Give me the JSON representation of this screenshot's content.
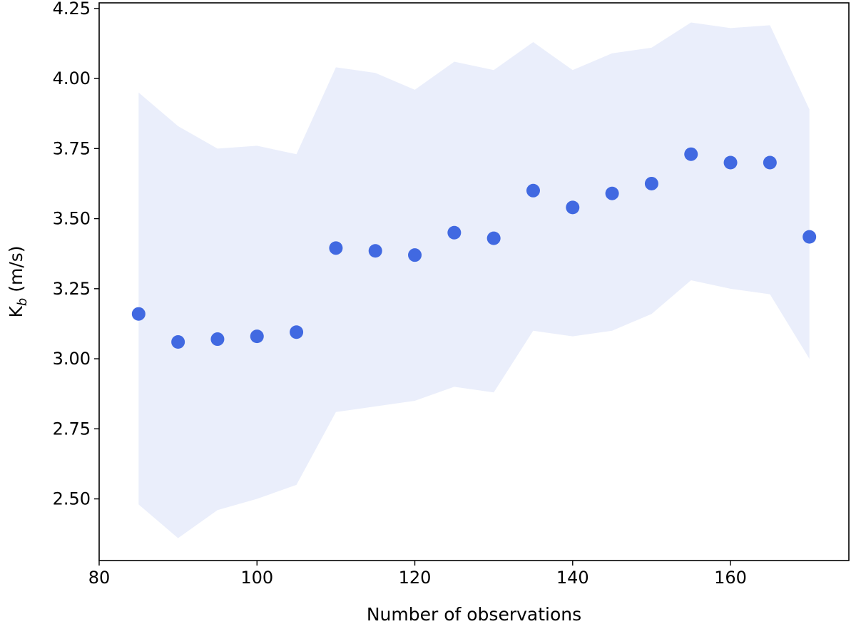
{
  "chart_data": {
    "type": "scatter",
    "title": "",
    "xlabel": "Number of observations",
    "ylabel_main": "K",
    "ylabel_sub": "b",
    "ylabel_unit": " (m/s)",
    "xlim": [
      80,
      175
    ],
    "ylim": [
      2.28,
      4.27
    ],
    "xticks": [
      80,
      100,
      120,
      140,
      160
    ],
    "xtick_labels": [
      "80",
      "100",
      "120",
      "140",
      "160"
    ],
    "yticks": [
      2.5,
      2.75,
      3.0,
      3.25,
      3.5,
      3.75,
      4.0,
      4.25
    ],
    "ytick_labels": [
      "2.50",
      "2.75",
      "3.00",
      "3.25",
      "3.50",
      "3.75",
      "4.00",
      "4.25"
    ],
    "grid": false,
    "colors": {
      "points": "#4169e1",
      "band": "#eaeefb"
    },
    "points": {
      "x": [
        85,
        90,
        95,
        100,
        105,
        110,
        115,
        120,
        125,
        130,
        135,
        140,
        145,
        150,
        155,
        160,
        165,
        170
      ],
      "y": [
        3.16,
        3.06,
        3.07,
        3.08,
        3.095,
        3.395,
        3.385,
        3.37,
        3.45,
        3.43,
        3.6,
        3.54,
        3.59,
        3.625,
        3.73,
        3.7,
        3.7,
        3.435
      ]
    },
    "band": {
      "x": [
        85,
        90,
        95,
        100,
        105,
        110,
        115,
        120,
        125,
        130,
        135,
        140,
        145,
        150,
        155,
        160,
        165,
        170
      ],
      "upper": [
        3.95,
        3.83,
        3.75,
        3.76,
        3.73,
        4.04,
        4.02,
        3.96,
        4.06,
        4.03,
        4.13,
        4.03,
        4.09,
        4.11,
        4.2,
        4.18,
        4.19,
        3.89
      ],
      "lower": [
        2.48,
        2.36,
        2.46,
        2.5,
        2.55,
        2.81,
        2.83,
        2.85,
        2.9,
        2.88,
        3.1,
        3.08,
        3.1,
        3.16,
        3.28,
        3.25,
        3.23,
        3.0
      ]
    }
  }
}
